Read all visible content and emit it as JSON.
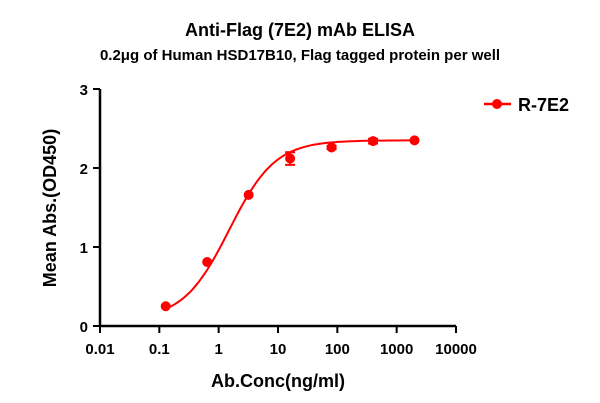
{
  "chart_data": {
    "type": "line",
    "title": "Anti-Flag (7E2) mAb ELISA",
    "subtitle": "0.2μg of Human HSD17B10, Flag tagged protein per well",
    "xlabel": "Ab.Conc(ng/ml)",
    "ylabel": "Mean Abs.(OD450)",
    "xscale": "log",
    "xlim": [
      0.01,
      10000
    ],
    "ylim": [
      0,
      3
    ],
    "xticks": [
      "0.01",
      "0.1",
      "1",
      "10",
      "100",
      "1000",
      "10000"
    ],
    "yticks": [
      "0",
      "1",
      "2",
      "3"
    ],
    "grid": false,
    "legend_position": "top-right",
    "color": "#ff0000",
    "series": [
      {
        "name": "R-7E2",
        "x": [
          0.128,
          0.64,
          3.2,
          16,
          80,
          400,
          2000
        ],
        "y": [
          0.25,
          0.81,
          1.66,
          2.12,
          2.26,
          2.34,
          2.35
        ],
        "error": [
          0.01,
          0.01,
          0.01,
          0.08,
          0.02,
          0.03,
          0.01
        ]
      }
    ]
  }
}
